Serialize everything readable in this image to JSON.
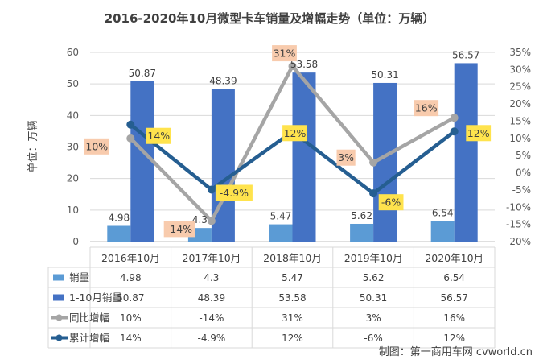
{
  "chart_data": {
    "type": "bar",
    "title": "2016-2020年10月微型卡车销量及增幅走势（单位：万辆）",
    "ylabel": "单位：万辆",
    "ylim": [
      0,
      60
    ],
    "yticks": [
      "0",
      "10",
      "20",
      "30",
      "40",
      "50",
      "60"
    ],
    "y2lim": [
      -20,
      35
    ],
    "y2ticks": [
      "-20%",
      "-15%",
      "-10%",
      "-5%",
      "0%",
      "5%",
      "10%",
      "15%",
      "20%",
      "25%",
      "30%",
      "35%"
    ],
    "categories": [
      "2016年10月",
      "2017年10月",
      "2018年10月",
      "2019年10月",
      "2020年10月"
    ],
    "series": [
      {
        "name": "销量",
        "type": "bar",
        "axis": "left",
        "color": "#5b9bd5",
        "values": [
          4.98,
          4.3,
          5.47,
          5.62,
          6.54
        ],
        "labels": [
          "4.98",
          "4.3",
          "5.47",
          "5.62",
          "6.54"
        ]
      },
      {
        "name": "1-10月销量",
        "type": "bar",
        "axis": "left",
        "color": "#4472c4",
        "values": [
          50.87,
          48.39,
          53.58,
          50.31,
          56.57
        ],
        "labels": [
          "50.87",
          "48.39",
          "53.58",
          "50.31",
          "56.57"
        ]
      },
      {
        "name": "同比增幅",
        "type": "line",
        "axis": "right",
        "color": "#a5a5a5",
        "values": [
          10,
          -14,
          31,
          3,
          16
        ],
        "labels": [
          "10%",
          "-14%",
          "31%",
          "3%",
          "16%"
        ],
        "table": [
          "10%",
          "-14%",
          "31%",
          "3%",
          "16%"
        ]
      },
      {
        "name": "累计增幅",
        "type": "line",
        "axis": "right",
        "color": "#255e91",
        "values": [
          14,
          -4.9,
          12,
          -6,
          12
        ],
        "labels": [
          "14%",
          "-4.9%",
          "12%",
          "-6%",
          "12%"
        ],
        "table": [
          "14%",
          "-4.9%",
          "12%",
          "-6%",
          "12%"
        ]
      }
    ],
    "label_colors": {
      "同比增幅": "#f8cbad",
      "累计增幅": "#ffe34d"
    },
    "grid": true,
    "legend": "data-table"
  },
  "watermark": "制图：第一商用车网 cvworld.cn"
}
